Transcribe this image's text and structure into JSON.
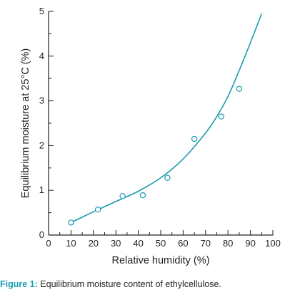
{
  "chart_data": {
    "type": "scatter",
    "xlabel": "Relative humidity (%)",
    "ylabel": "Equilibrium moisture at 25°C (%)",
    "xlim": [
      0,
      100
    ],
    "ylim": [
      0,
      5
    ],
    "x_ticks": [
      "0",
      "10",
      "20",
      "30",
      "40",
      "50",
      "60",
      "70",
      "80",
      "90",
      "100"
    ],
    "y_ticks": [
      "0",
      "1",
      "2",
      "3",
      "4",
      "5"
    ],
    "grid": false,
    "series": [
      {
        "marker": "open-circle",
        "x": [
          10,
          22,
          33,
          42,
          53,
          65,
          77,
          85
        ],
        "y": [
          0.28,
          0.57,
          0.87,
          0.89,
          1.28,
          2.15,
          2.65,
          3.27
        ]
      }
    ],
    "fit_curve": {
      "style": "smooth-line",
      "color": "#1a9cb0",
      "x": [
        10,
        20,
        30,
        40,
        50,
        60,
        70,
        75,
        80,
        85,
        90,
        95
      ],
      "y": [
        0.28,
        0.52,
        0.75,
        0.98,
        1.28,
        1.7,
        2.28,
        2.65,
        3.1,
        3.68,
        4.3,
        4.95
      ]
    }
  },
  "caption": {
    "label": "Figure 1:",
    "text": "Equilibrium moisture content of ethylcellulose."
  },
  "colors": {
    "accent": "#1a9cb0",
    "axis": "#231f20"
  }
}
